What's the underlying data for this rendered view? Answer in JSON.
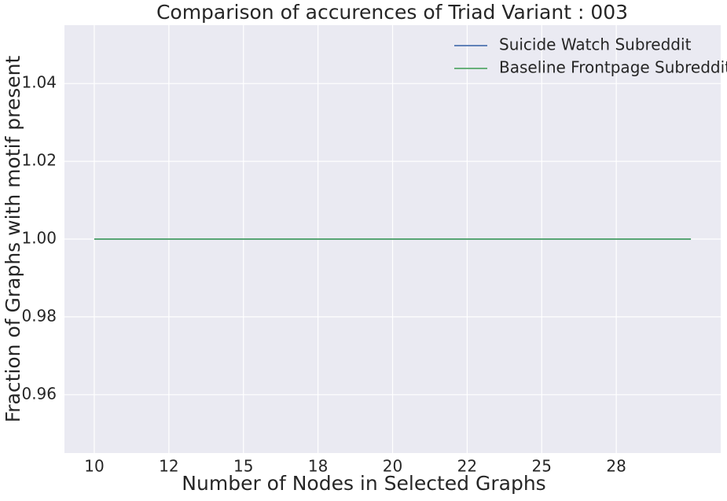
{
  "chart_data": {
    "type": "line",
    "title": "Comparison of accurences of Triad Variant  : 003",
    "xlabel": "Number of Nodes in Selected Graphs",
    "ylabel": "Fraction of Graphs with motif present",
    "x": [
      10,
      11,
      12,
      13,
      14,
      15,
      16,
      17,
      18,
      19,
      20,
      21,
      22,
      23,
      24,
      25,
      26,
      27,
      28,
      29,
      30
    ],
    "series": [
      {
        "name": "Suicide Watch Subreddit",
        "color": "#4c72b0",
        "values": [
          1,
          1,
          1,
          1,
          1,
          1,
          1,
          1,
          1,
          1,
          1,
          1,
          1,
          1,
          1,
          1,
          1,
          1,
          1,
          1,
          1
        ]
      },
      {
        "name": "Baseline Frontpage Subreddit",
        "color": "#55a868",
        "values": [
          1,
          1,
          1,
          1,
          1,
          1,
          1,
          1,
          1,
          1,
          1,
          1,
          1,
          1,
          1,
          1,
          1,
          1,
          1,
          1,
          1
        ]
      }
    ],
    "xlim": [
      9,
      31
    ],
    "xticks": [
      10,
      {
        "value": 12.5,
        "label": "12"
      },
      15,
      {
        "value": 17.5,
        "label": "18"
      },
      20,
      {
        "value": 22.5,
        "label": "22"
      },
      25,
      {
        "value": 27.5,
        "label": "28"
      }
    ],
    "ylim": [
      0.945,
      1.055
    ],
    "yticks": [
      0.96,
      0.98,
      {
        "value": 1.0,
        "label": "1.00"
      },
      1.02,
      1.04
    ],
    "grid": true,
    "legend": "upper right"
  }
}
